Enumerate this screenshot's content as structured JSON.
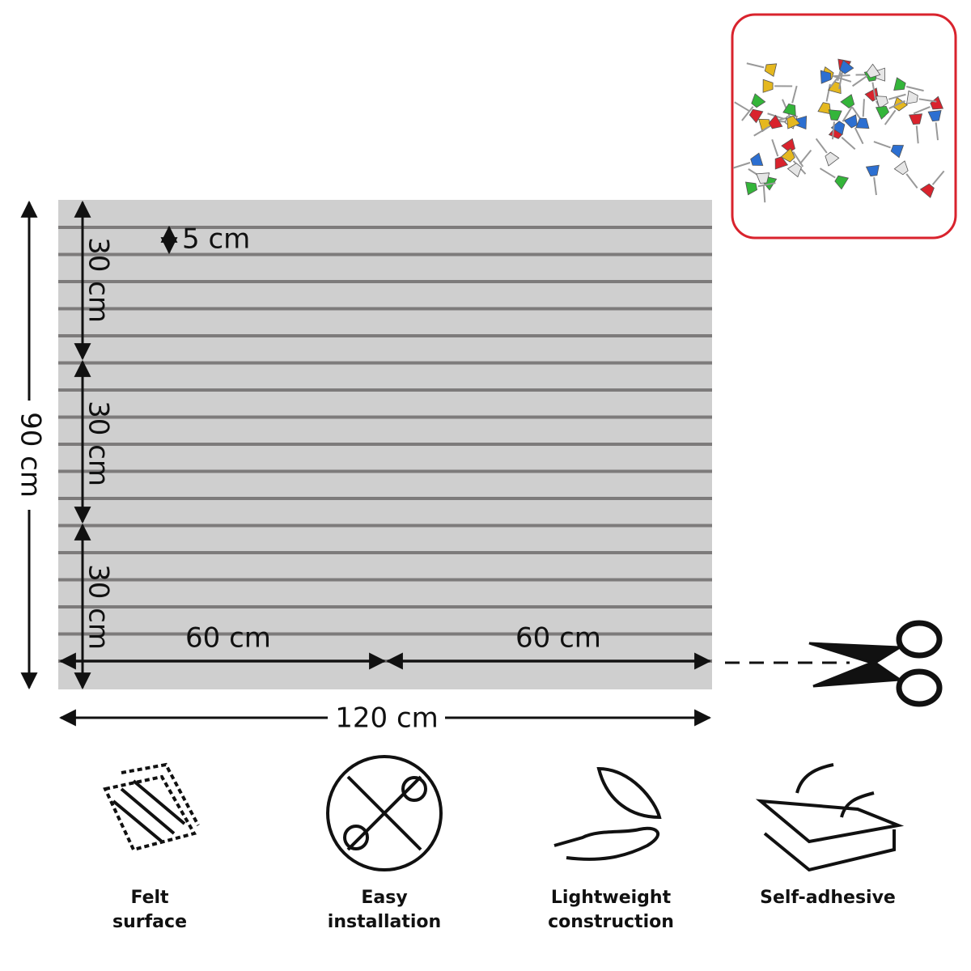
{
  "dimensions": {
    "groove": "5 cm",
    "sections": [
      "30 cm",
      "30 cm",
      "30 cm"
    ],
    "height": "90 cm",
    "halves": [
      "60 cm",
      "60 cm"
    ],
    "width": "120 cm"
  },
  "features": [
    {
      "lines": [
        "Felt",
        "surface"
      ]
    },
    {
      "lines": [
        "Easy",
        "installation"
      ]
    },
    {
      "lines": [
        "Lightweight",
        "construction"
      ]
    },
    {
      "lines": [
        "Self-adhesive"
      ]
    }
  ]
}
